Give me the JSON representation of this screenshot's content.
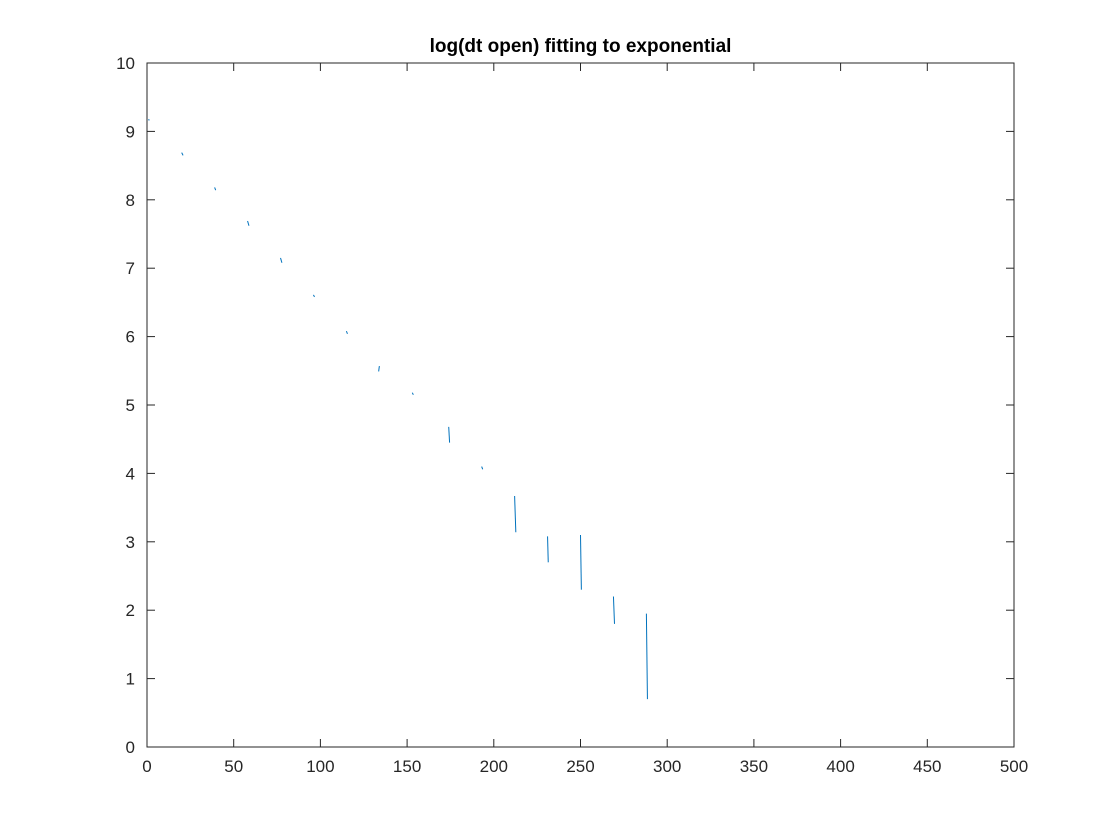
{
  "chart_data": {
    "type": "line",
    "title": "log(dt open) fitting to exponential",
    "xlabel": "",
    "ylabel": "",
    "xlim": [
      0,
      500
    ],
    "ylim": [
      0,
      10
    ],
    "xticks": [
      0,
      50,
      100,
      150,
      200,
      250,
      300,
      350,
      400,
      450,
      500
    ],
    "yticks": [
      0,
      1,
      2,
      3,
      4,
      5,
      6,
      7,
      8,
      9,
      10
    ],
    "grid": false,
    "legend": "none",
    "series_color": "#0072BD",
    "series": [
      {
        "segments": [
          [
            [
              1.0,
              9.18
            ],
            [
              1.2,
              9.16
            ]
          ],
          [
            [
              20.0,
              8.69
            ],
            [
              20.8,
              8.65
            ]
          ],
          [
            [
              39.0,
              8.18
            ],
            [
              39.6,
              8.14
            ]
          ],
          [
            [
              58.0,
              7.69
            ],
            [
              58.8,
              7.62
            ]
          ],
          [
            [
              77.0,
              7.15
            ],
            [
              77.8,
              7.08
            ]
          ],
          [
            [
              96.0,
              6.61
            ],
            [
              96.6,
              6.58
            ]
          ],
          [
            [
              115.0,
              6.08
            ],
            [
              115.6,
              6.04
            ]
          ],
          [
            [
              134.0,
              5.57
            ],
            [
              133.6,
              5.49
            ]
          ],
          [
            [
              153.0,
              5.18
            ],
            [
              153.6,
              5.15
            ]
          ],
          [
            [
              174.0,
              4.68
            ],
            [
              174.5,
              4.45
            ]
          ],
          [
            [
              193.0,
              4.1
            ],
            [
              193.6,
              4.06
            ]
          ],
          [
            [
              212.0,
              3.67
            ],
            [
              212.7,
              3.14
            ]
          ],
          [
            [
              231.0,
              3.08
            ],
            [
              231.4,
              2.7
            ]
          ],
          [
            [
              250.0,
              3.1
            ],
            [
              250.5,
              2.3
            ]
          ],
          [
            [
              269.0,
              2.2
            ],
            [
              269.6,
              1.8
            ]
          ],
          [
            [
              288.0,
              1.95
            ],
            [
              288.6,
              0.7
            ]
          ]
        ]
      }
    ]
  }
}
